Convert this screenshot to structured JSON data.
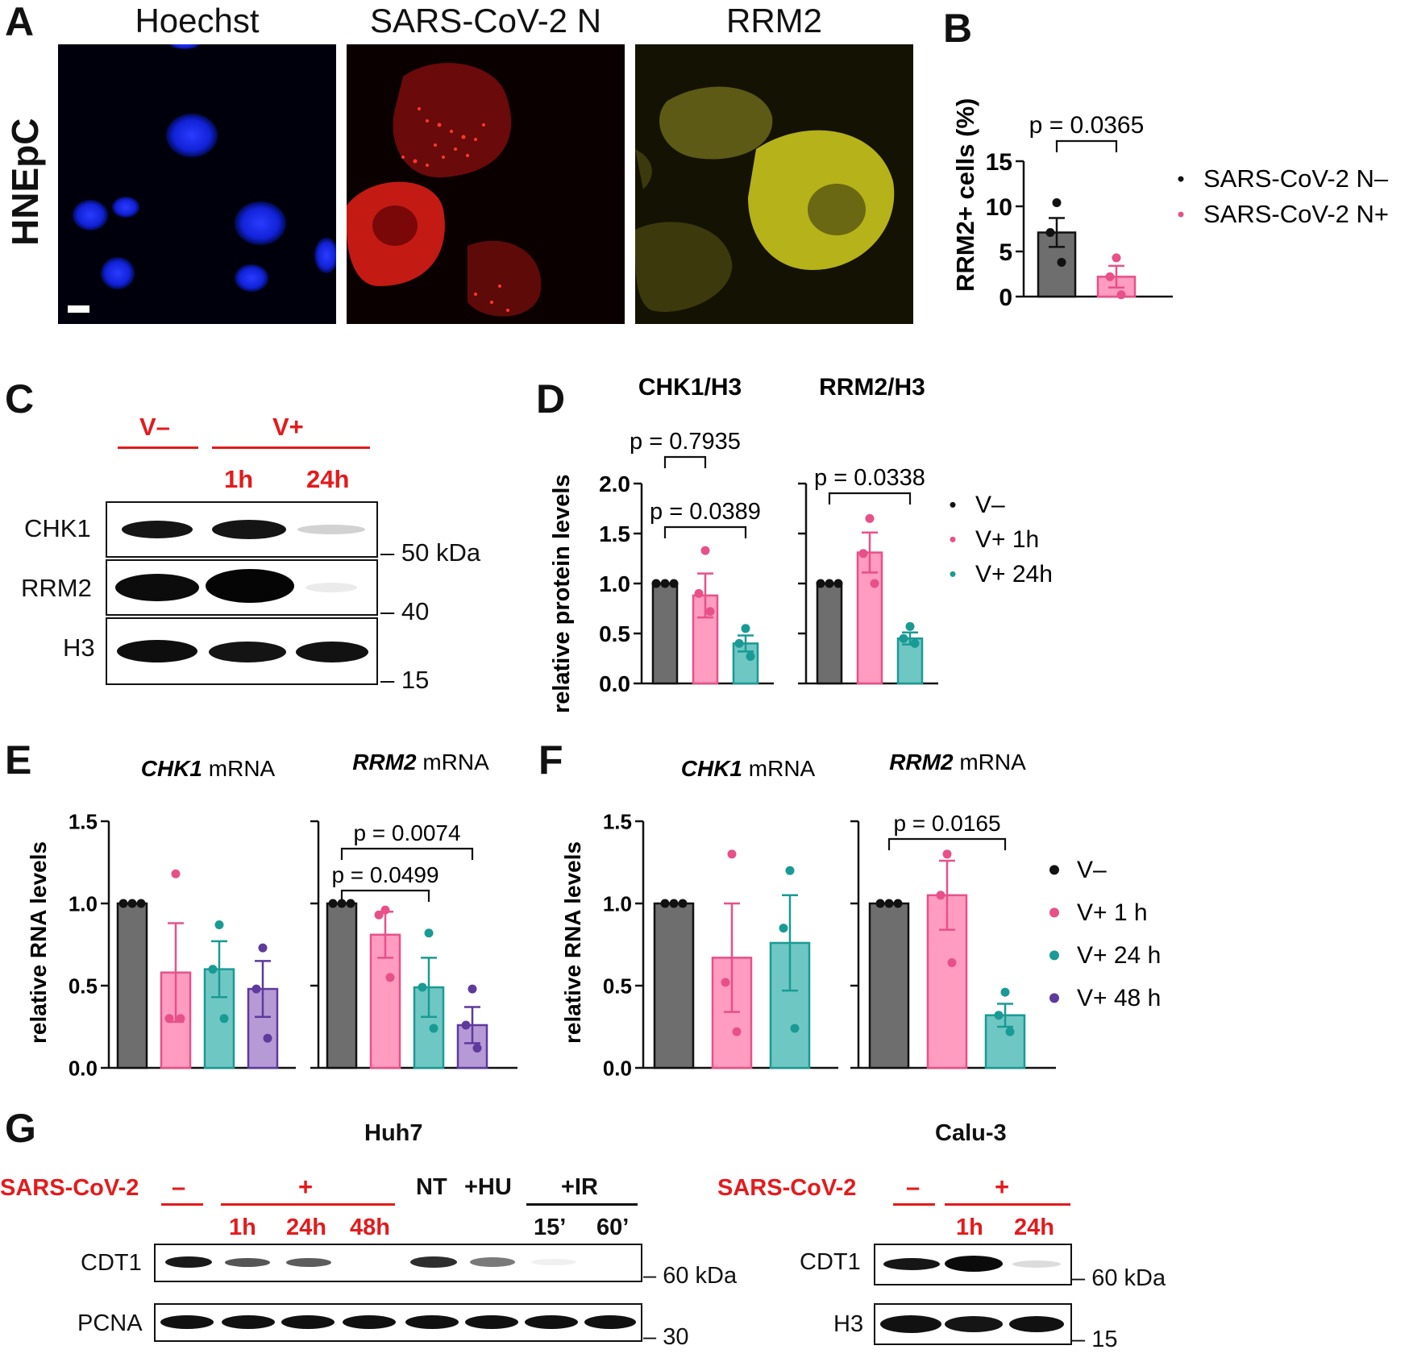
{
  "panels": {
    "A": "A",
    "B": "B",
    "C": "C",
    "D": "D",
    "E": "E",
    "F": "F",
    "G": "G"
  },
  "colors": {
    "neg": "#6e6e6e",
    "v1": "#ff9cc0",
    "v1_dark": "#e8508a",
    "v24": "#6fc7c4",
    "v24_dark": "#1a9a94",
    "v48": "#b69ad6",
    "v48_dark": "#5e3a9c"
  },
  "panelA": {
    "row_label": "HNEpC",
    "channels": [
      {
        "title": "Hoechst",
        "color": "blue"
      },
      {
        "title": "SARS-CoV-2 N",
        "color": "red"
      },
      {
        "title": "RRM2",
        "color": "yellow"
      }
    ]
  },
  "panelB": {
    "legend": [
      "SARS-CoV-2 N–",
      "SARS-CoV-2 N+"
    ],
    "p": "p = 0.0365"
  },
  "panelC": {
    "groups": [
      "V–",
      "V+"
    ],
    "timepoints": [
      "1h",
      "24h"
    ],
    "rows": [
      "CHK1",
      "RRM2",
      "H3"
    ],
    "markers": [
      "50 kDa",
      "40",
      "15"
    ]
  },
  "panelD": {
    "legend": [
      "V–",
      "V+ 1h",
      "V+ 24h"
    ]
  },
  "panelE": {
    "titles": [
      {
        "italic": "CHK1",
        "rest": " mRNA"
      },
      {
        "italic": "RRM2",
        "rest": " mRNA"
      }
    ]
  },
  "panelF": {
    "titles": [
      {
        "italic": "CHK1",
        "rest": " mRNA"
      },
      {
        "italic": "RRM2",
        "rest": " mRNA"
      }
    ],
    "legend": [
      "V–",
      "V+ 1 h",
      "V+ 24 h",
      "V+ 48 h"
    ]
  },
  "panelG": {
    "huh7": {
      "cell_line": "Huh7",
      "treatment": "SARS-CoV-2",
      "minus": "–",
      "plus": "+",
      "timepoints": [
        "1h",
        "24h",
        "48h"
      ],
      "controls": [
        "NT",
        "+HU",
        "+IR"
      ],
      "ir_times": [
        "15’",
        "60’"
      ],
      "rows": [
        "CDT1",
        "PCNA"
      ],
      "markers": [
        "60 kDa",
        "30"
      ]
    },
    "calu3": {
      "cell_line": "Calu-3",
      "treatment": "SARS-CoV-2",
      "minus": "–",
      "plus": "+",
      "timepoints": [
        "1h",
        "24h"
      ],
      "rows": [
        "CDT1",
        "H3"
      ],
      "markers": [
        "60 kDa",
        "15"
      ]
    }
  },
  "chart_data": [
    {
      "id": "B",
      "type": "bar",
      "ylabel": "RRM2+ cells (%)",
      "ylim": [
        0,
        15
      ],
      "yticks": [
        0,
        5,
        10,
        15
      ],
      "series": [
        {
          "name": "SARS-CoV-2 N–",
          "mean": 7.1,
          "sem": 1.6,
          "points": [
            10.4,
            7.1,
            3.8
          ]
        },
        {
          "name": "SARS-CoV-2 N+",
          "mean": 2.2,
          "sem": 1.2,
          "points": [
            4.3,
            2.2,
            0.2
          ]
        }
      ],
      "comparisons": [
        {
          "a": 0,
          "b": 1,
          "label": "p = 0.0365"
        }
      ]
    },
    {
      "id": "D",
      "type": "bar",
      "ylabel": "relative protein levels",
      "ylim": [
        0,
        2.0
      ],
      "yticks": [
        "0.0",
        "0.5",
        "1.0",
        "1.5",
        "2.0"
      ],
      "subplots": [
        {
          "title": "CHK1/H3",
          "bars": [
            {
              "mean": 1.0,
              "sem": 0,
              "points": [
                1.0,
                1.0,
                1.0
              ]
            },
            {
              "mean": 0.88,
              "sem": 0.22,
              "points": [
                1.33,
                0.9,
                0.72
              ]
            },
            {
              "mean": 0.4,
              "sem": 0.08,
              "points": [
                0.55,
                0.4,
                0.27
              ]
            }
          ],
          "comparisons": [
            {
              "a": 0,
              "b": 1,
              "label": "p = 0.7935"
            },
            {
              "a": 0,
              "b": 2,
              "label": "p = 0.0389"
            }
          ]
        },
        {
          "title": "RRM2/H3",
          "bars": [
            {
              "mean": 1.0,
              "sem": 0,
              "points": [
                1.0,
                1.0,
                1.0
              ]
            },
            {
              "mean": 1.31,
              "sem": 0.2,
              "points": [
                1.65,
                1.3,
                1.0
              ]
            },
            {
              "mean": 0.45,
              "sem": 0.06,
              "points": [
                0.57,
                0.45,
                0.4
              ]
            }
          ],
          "comparisons": [
            {
              "a": 0,
              "b": 2,
              "label": "p = 0.0338"
            }
          ]
        }
      ]
    },
    {
      "id": "E",
      "type": "bar",
      "ylabel": "relative RNA levels",
      "ylim": [
        0,
        1.5
      ],
      "yticks": [
        "0.0",
        "0.5",
        "1.0",
        "1.5"
      ],
      "subplots": [
        {
          "title": "CHK1 mRNA",
          "bars": [
            {
              "mean": 1.0,
              "sem": 0,
              "points": [
                1.0,
                1.0,
                1.0
              ]
            },
            {
              "mean": 0.58,
              "sem": 0.3,
              "points": [
                1.18,
                0.3,
                0.3
              ]
            },
            {
              "mean": 0.6,
              "sem": 0.17,
              "points": [
                0.87,
                0.6,
                0.3
              ]
            },
            {
              "mean": 0.48,
              "sem": 0.17,
              "points": [
                0.73,
                0.48,
                0.18
              ]
            }
          ],
          "comparisons": []
        },
        {
          "title": "RRM2 mRNA",
          "bars": [
            {
              "mean": 1.0,
              "sem": 0,
              "points": [
                1.0,
                1.0,
                1.0
              ]
            },
            {
              "mean": 0.81,
              "sem": 0.14,
              "points": [
                0.96,
                0.93,
                0.55
              ]
            },
            {
              "mean": 0.49,
              "sem": 0.18,
              "points": [
                0.82,
                0.49,
                0.24
              ]
            },
            {
              "mean": 0.26,
              "sem": 0.11,
              "points": [
                0.48,
                0.26,
                0.12
              ]
            }
          ],
          "comparisons": [
            {
              "a": 0,
              "b": 2,
              "label": "p = 0.0499"
            },
            {
              "a": 0,
              "b": 3,
              "label": "p = 0.0074"
            }
          ]
        }
      ]
    },
    {
      "id": "F",
      "type": "bar",
      "ylabel": "relative RNA levels",
      "ylim": [
        0,
        1.5
      ],
      "yticks": [
        "0.0",
        "0.5",
        "1.0",
        "1.5"
      ],
      "subplots": [
        {
          "title": "CHK1 mRNA",
          "bars": [
            {
              "mean": 1.0,
              "sem": 0,
              "points": [
                1.0,
                1.0,
                1.0
              ]
            },
            {
              "mean": 0.67,
              "sem": 0.33,
              "points": [
                1.3,
                0.52,
                0.22
              ]
            },
            {
              "mean": 0.76,
              "sem": 0.29,
              "points": [
                1.2,
                0.85,
                0.24
              ]
            }
          ],
          "comparisons": []
        },
        {
          "title": "RRM2 mRNA",
          "bars": [
            {
              "mean": 1.0,
              "sem": 0,
              "points": [
                1.0,
                1.0,
                1.0
              ]
            },
            {
              "mean": 1.05,
              "sem": 0.21,
              "points": [
                1.3,
                1.05,
                0.64
              ]
            },
            {
              "mean": 0.32,
              "sem": 0.07,
              "points": [
                0.46,
                0.32,
                0.22
              ]
            }
          ],
          "comparisons": [
            {
              "a": 0,
              "b": 2,
              "label": "p = 0.0165"
            }
          ]
        }
      ]
    }
  ]
}
